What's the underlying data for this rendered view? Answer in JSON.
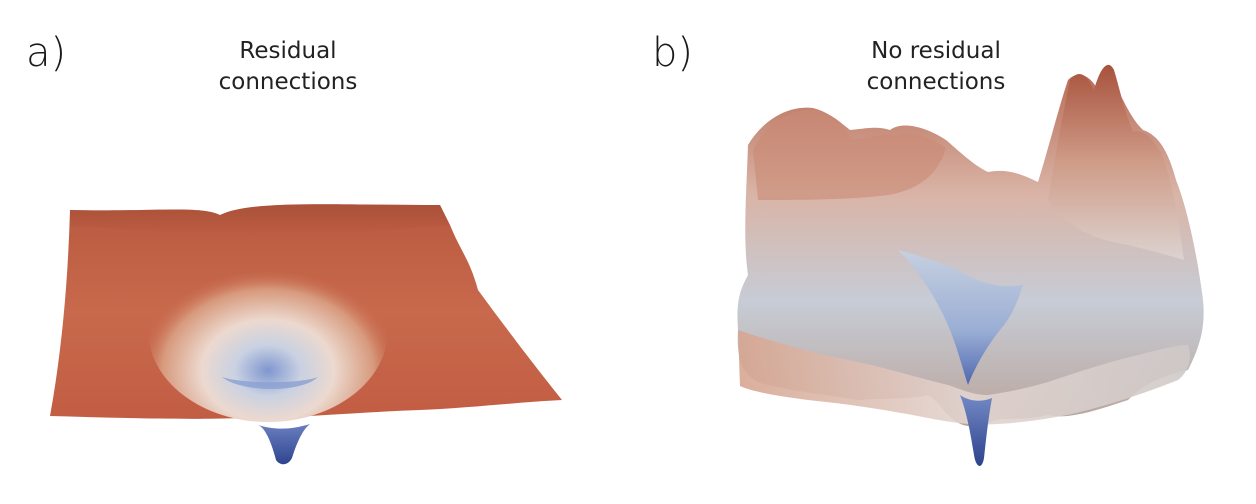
{
  "panels": [
    {
      "letter": "a)",
      "title_line1": "Residual",
      "title_line2": "connections"
    },
    {
      "letter": "b)",
      "title_line1": "No residual",
      "title_line2": "connections"
    }
  ],
  "colors": {
    "high": "#b5533c",
    "mid": "#d7d2d0",
    "low": "#3d56a6"
  }
}
